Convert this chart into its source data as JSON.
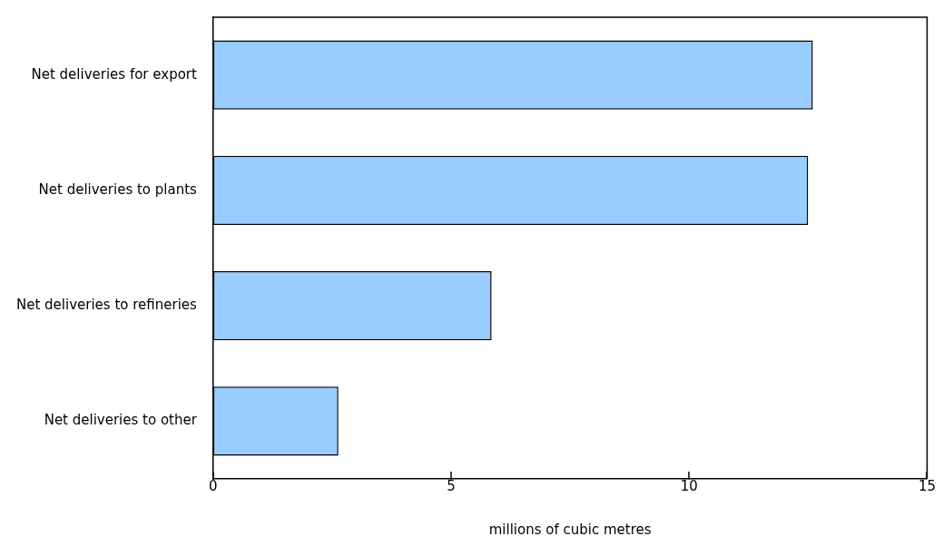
{
  "chart_data": {
    "type": "bar",
    "orientation": "horizontal",
    "xlabel": "millions of cubic metres",
    "categories": [
      "Net deliveries for export",
      "Net deliveries to plants",
      "Net deliveries to refineries",
      "Net deliveries to other"
    ],
    "values": [
      12.6,
      12.5,
      5.85,
      2.63
    ],
    "color": "#99ccff",
    "xlim": [
      0,
      15
    ],
    "xticks": [
      0,
      5,
      10,
      15
    ]
  }
}
